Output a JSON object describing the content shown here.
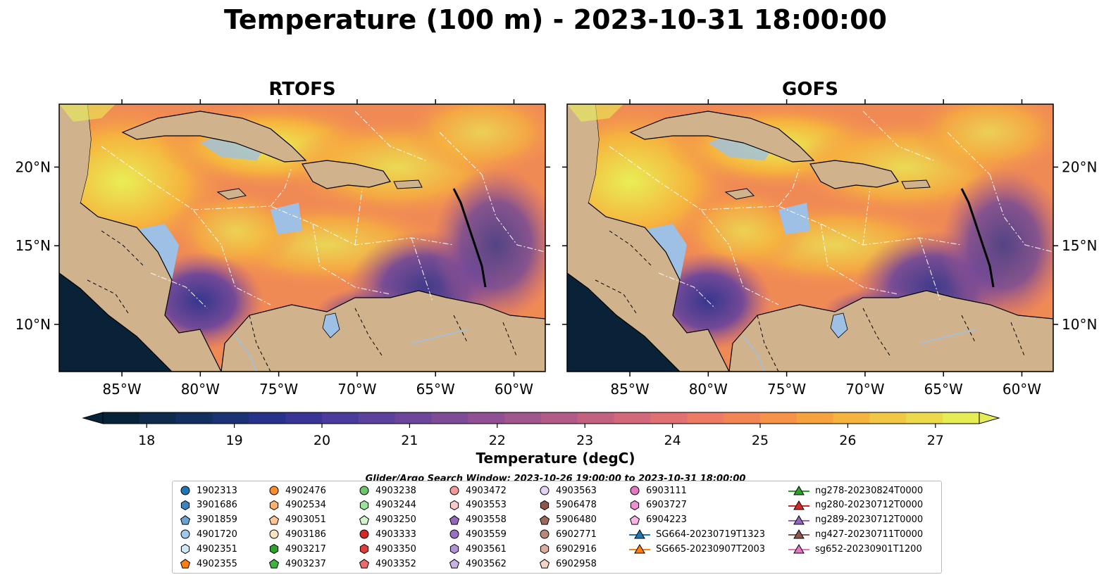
{
  "title": "Temperature (100 m) - 2023-10-31 18:00:00",
  "search_window": "Glider/Argo Search Window: 2023-10-26 19:00:00 to 2023-10-31 18:00:00",
  "chart_data": [
    {
      "type": "heatmap",
      "title": "RTOFS",
      "x_tick_labels": [
        "85°W",
        "80°W",
        "75°W",
        "70°W",
        "65°W",
        "60°W"
      ],
      "x_ticks": [
        -85,
        -80,
        -75,
        -70,
        -65,
        -60
      ],
      "y_tick_labels": [
        "10°N",
        "15°N",
        "20°N"
      ],
      "y_ticks": [
        10,
        15,
        20
      ],
      "xlim": [
        -89,
        -58
      ],
      "ylim": [
        7,
        24
      ]
    },
    {
      "type": "heatmap",
      "title": "GOFS",
      "x_tick_labels": [
        "85°W",
        "80°W",
        "75°W",
        "70°W",
        "65°W",
        "60°W"
      ],
      "x_ticks": [
        -85,
        -80,
        -75,
        -70,
        -65,
        -60
      ],
      "y_tick_labels": [
        "10°N",
        "15°N",
        "20°N"
      ],
      "y_ticks": [
        10,
        15,
        20
      ],
      "xlim": [
        -89,
        -58
      ],
      "ylim": [
        7,
        24
      ]
    }
  ],
  "colorbar": {
    "label": "Temperature (degC)",
    "min": 17.5,
    "max": 27.5,
    "extend": "both",
    "ticks": [
      18,
      19,
      20,
      21,
      22,
      23,
      24,
      25,
      26,
      27
    ],
    "tick_labels": [
      "18",
      "19",
      "20",
      "21",
      "22",
      "23",
      "24",
      "25",
      "26",
      "27"
    ],
    "colors": [
      "#06233a",
      "#0e2a4c",
      "#132f60",
      "#1b3275",
      "#29328a",
      "#383596",
      "#4a3b9c",
      "#5c419d",
      "#6d469b",
      "#7e4b97",
      "#905093",
      "#a2568e",
      "#b35b88",
      "#c46181",
      "#d3687a",
      "#e07072",
      "#ec7a64",
      "#f38555",
      "#f69348",
      "#f6a33e",
      "#f5b43c",
      "#f2c743",
      "#ecda4c",
      "#e5ec55"
    ]
  },
  "legend": [
    {
      "label": "1902313",
      "marker": "circle",
      "color": "#1f77b4"
    },
    {
      "label": "3901686",
      "marker": "hexagon",
      "color": "#3a84c0"
    },
    {
      "label": "3901859",
      "marker": "pentagon",
      "color": "#6aa2d0"
    },
    {
      "label": "4901720",
      "marker": "circle",
      "color": "#9ec9ea"
    },
    {
      "label": "4902351",
      "marker": "hexagon",
      "color": "#cfe7f7"
    },
    {
      "label": "4902355",
      "marker": "pentagon",
      "color": "#ff7f0e"
    },
    {
      "label": "4902476",
      "marker": "circle",
      "color": "#ff8f2a"
    },
    {
      "label": "4902534",
      "marker": "hexagon",
      "color": "#ffb06b"
    },
    {
      "label": "4903051",
      "marker": "pentagon",
      "color": "#ffc799"
    },
    {
      "label": "4903186",
      "marker": "circle",
      "color": "#fde2c4"
    },
    {
      "label": "4903217",
      "marker": "hexagon",
      "color": "#2ca02c"
    },
    {
      "label": "4903237",
      "marker": "pentagon",
      "color": "#3fb23f"
    },
    {
      "label": "4903238",
      "marker": "circle",
      "color": "#6cc46c"
    },
    {
      "label": "4903244",
      "marker": "hexagon",
      "color": "#9be39b"
    },
    {
      "label": "4903250",
      "marker": "pentagon",
      "color": "#d2f5cc"
    },
    {
      "label": "4903333",
      "marker": "circle",
      "color": "#d62728"
    },
    {
      "label": "4903350",
      "marker": "hexagon",
      "color": "#e03b3c"
    },
    {
      "label": "4903352",
      "marker": "pentagon",
      "color": "#ee6b6b"
    },
    {
      "label": "4903472",
      "marker": "circle",
      "color": "#f59a98"
    },
    {
      "label": "4903553",
      "marker": "hexagon",
      "color": "#fccaca"
    },
    {
      "label": "4903558",
      "marker": "pentagon",
      "color": "#9467bd"
    },
    {
      "label": "4903559",
      "marker": "circle",
      "color": "#9a70c2"
    },
    {
      "label": "4903561",
      "marker": "hexagon",
      "color": "#b194d6"
    },
    {
      "label": "4903562",
      "marker": "pentagon",
      "color": "#c9b2e6"
    },
    {
      "label": "4903563",
      "marker": "circle",
      "color": "#e3d4f5"
    },
    {
      "label": "5906478",
      "marker": "hexagon",
      "color": "#8c564b"
    },
    {
      "label": "5906480",
      "marker": "pentagon",
      "color": "#9c6a5c"
    },
    {
      "label": "6902771",
      "marker": "circle",
      "color": "#b8897a"
    },
    {
      "label": "6902916",
      "marker": "hexagon",
      "color": "#d9ae9e"
    },
    {
      "label": "6902958",
      "marker": "pentagon",
      "color": "#f6d5c8"
    },
    {
      "label": "6903111",
      "marker": "circle",
      "color": "#e377c2"
    },
    {
      "label": "6903727",
      "marker": "hexagon",
      "color": "#ee92d3"
    },
    {
      "label": "6904223",
      "marker": "pentagon",
      "color": "#f9b6e4"
    },
    {
      "label": "SG664-20230719T1323",
      "marker": "triangle-line",
      "color": "#1f77b4"
    },
    {
      "label": "SG665-20230907T2003",
      "marker": "triangle-line",
      "color": "#ff7f0e"
    },
    {
      "label": "ng278-20230824T0000",
      "marker": "triangle-line",
      "color": "#2ca02c"
    },
    {
      "label": "ng280-20230712T0000",
      "marker": "triangle-line",
      "color": "#d62728"
    },
    {
      "label": "ng289-20230712T0000",
      "marker": "triangle-line",
      "color": "#9467bd"
    },
    {
      "label": "ng427-20230711T0000",
      "marker": "triangle-line",
      "color": "#8c564b"
    },
    {
      "label": "sg652-20230901T1200",
      "marker": "triangle-line",
      "color": "#e377c2"
    }
  ],
  "colors": {
    "land": "#d0b38c",
    "shelf": "#9ec0e4",
    "pacific": "#0a2238"
  }
}
